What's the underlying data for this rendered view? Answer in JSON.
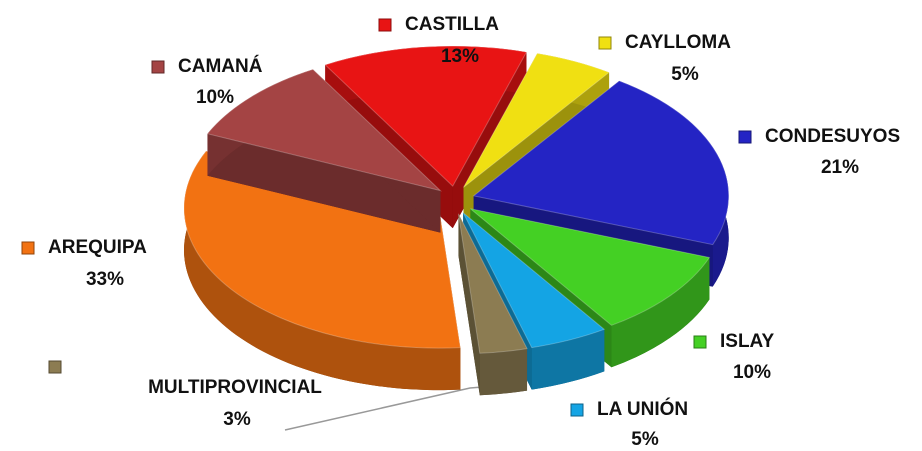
{
  "chart_data": {
    "type": "pie",
    "categories": [
      "CASTILLA",
      "CAYLLOMA",
      "CONDESUYOS",
      "ISLAY",
      "LA UNIÓN",
      "MULTIPROVINCIAL",
      "AREQUIPA",
      "CAMANÁ"
    ],
    "values": [
      13,
      5,
      21,
      10,
      5,
      3,
      33,
      10
    ],
    "value_labels": [
      "13%",
      "5%",
      "21%",
      "10%",
      "5%",
      "3%",
      "33%",
      "10%"
    ],
    "colors": [
      "#e81414",
      "#f0e012",
      "#2424c4",
      "#44d024",
      "#14a4e4",
      "#8c7c52",
      "#f27212",
      "#a44444"
    ]
  }
}
